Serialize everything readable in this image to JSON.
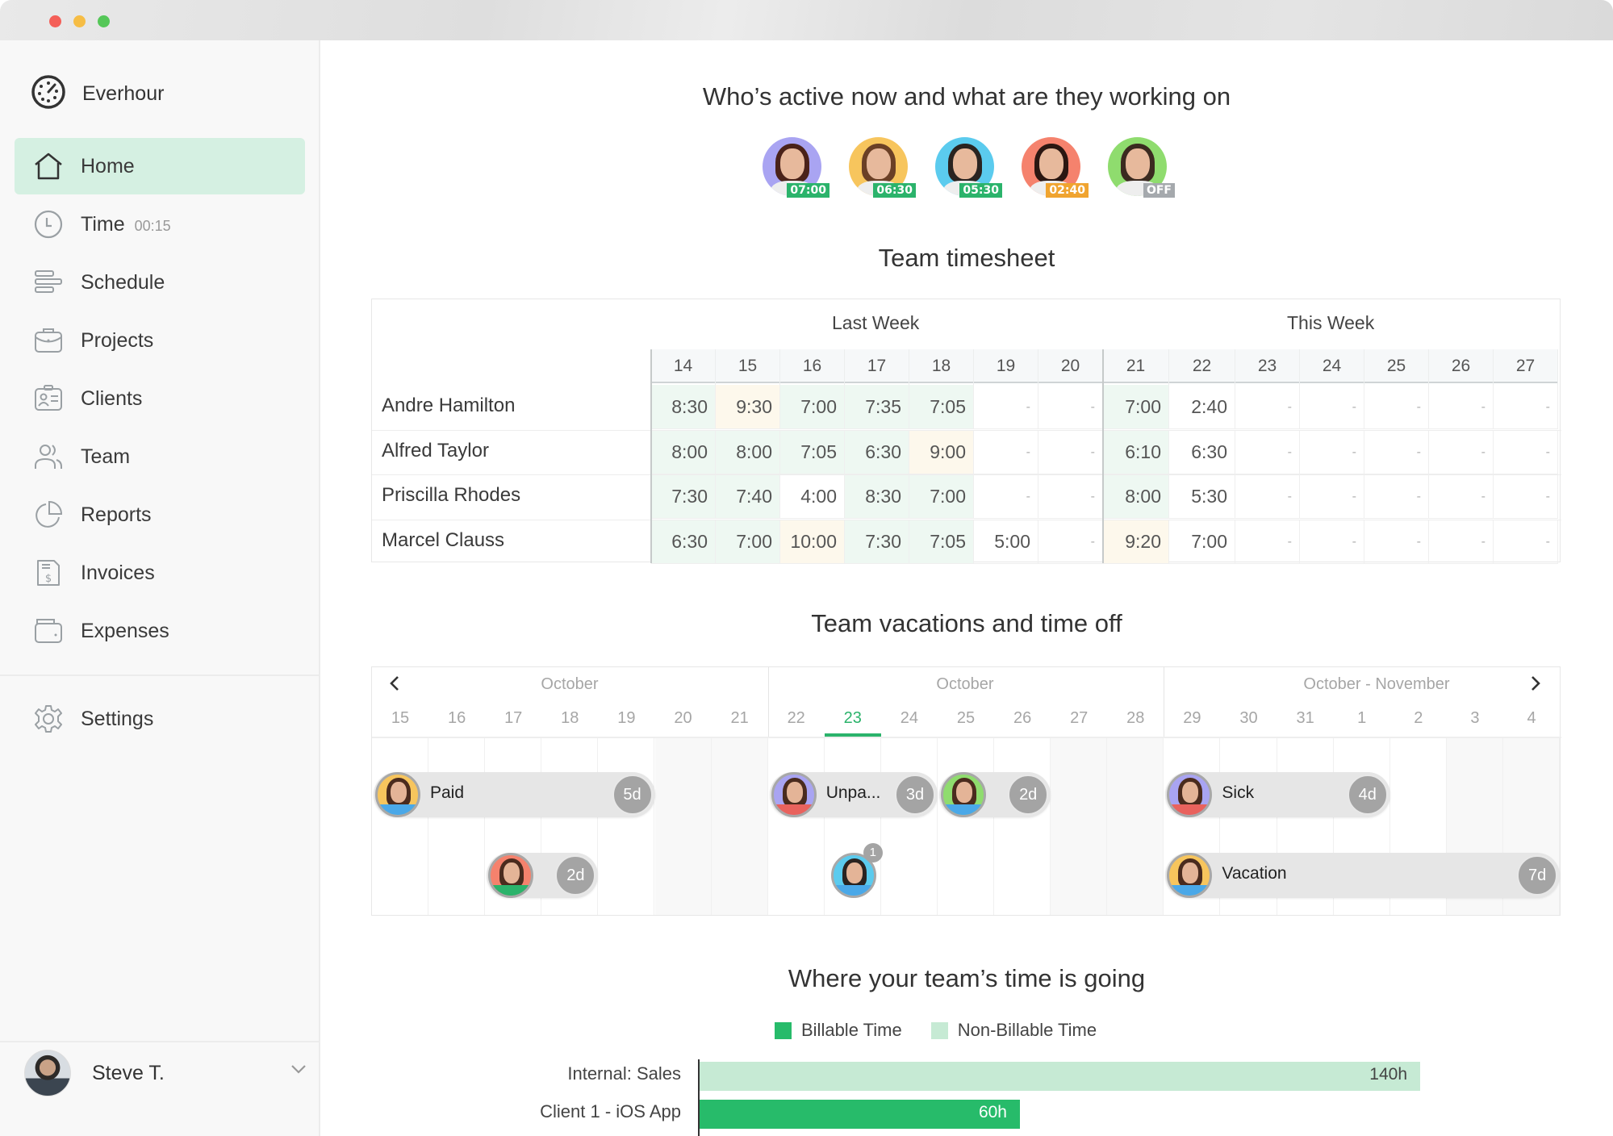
{
  "window": {
    "controls": [
      "close",
      "minimize",
      "maximize"
    ]
  },
  "sidebar": {
    "brand": "Everhour",
    "items": [
      {
        "label": "Home",
        "icon": "home-icon",
        "active": true
      },
      {
        "label": "Time",
        "icon": "clock-icon",
        "meta": "00:15"
      },
      {
        "label": "Schedule",
        "icon": "schedule-icon"
      },
      {
        "label": "Projects",
        "icon": "briefcase-icon"
      },
      {
        "label": "Clients",
        "icon": "id-card-icon"
      },
      {
        "label": "Team",
        "icon": "team-icon"
      },
      {
        "label": "Reports",
        "icon": "pie-chart-icon"
      },
      {
        "label": "Invoices",
        "icon": "invoice-icon"
      },
      {
        "label": "Expenses",
        "icon": "wallet-icon"
      }
    ],
    "settings": {
      "label": "Settings",
      "icon": "gear-icon"
    },
    "user": {
      "name": "Steve T."
    }
  },
  "active_now": {
    "title": "Who’s active now and what are they working on",
    "users": [
      {
        "badge": "07:00",
        "bg": "#a9a4f2",
        "badge_color": "#2bb36b",
        "hair": "#4a2219"
      },
      {
        "badge": "06:30",
        "bg": "#f7c55d",
        "badge_color": "#2bb36b",
        "hair": "#6b4026"
      },
      {
        "badge": "05:30",
        "bg": "#5bcbee",
        "badge_color": "#2bb36b",
        "hair": "#2a2320"
      },
      {
        "badge": "02:40",
        "bg": "#f5826d",
        "badge_color": "#f0a430",
        "hair": "#2b1712"
      },
      {
        "badge": "OFF",
        "bg": "#8fdc6e",
        "badge_color": "#a5a9ad",
        "hair": "#3b2a20"
      }
    ]
  },
  "timesheet": {
    "title": "Team timesheet",
    "weeks": [
      "Last Week",
      "This Week"
    ],
    "days": [
      "14",
      "15",
      "16",
      "17",
      "18",
      "19",
      "20",
      "21",
      "22",
      "23",
      "24",
      "25",
      "26",
      "27"
    ],
    "rows": [
      {
        "name": "Andre Hamilton",
        "values": [
          "8:30",
          "9:30",
          "7:00",
          "7:35",
          "7:05",
          "-",
          "-",
          "7:00",
          "2:40",
          "-",
          "-",
          "-",
          "-",
          "-"
        ],
        "tints": [
          "g",
          "y",
          "g",
          "g",
          "g",
          "",
          "",
          "g",
          "",
          "",
          "",
          "",
          "",
          ""
        ]
      },
      {
        "name": "Alfred Taylor",
        "values": [
          "8:00",
          "8:00",
          "7:05",
          "6:30",
          "9:00",
          "-",
          "-",
          "6:10",
          "6:30",
          "-",
          "-",
          "-",
          "-",
          "-"
        ],
        "tints": [
          "g",
          "g",
          "g",
          "g",
          "y",
          "",
          "",
          "g",
          "",
          "",
          "",
          "",
          "",
          ""
        ]
      },
      {
        "name": "Priscilla Rhodes",
        "values": [
          "7:30",
          "7:40",
          "4:00",
          "8:30",
          "7:00",
          "-",
          "-",
          "8:00",
          "5:30",
          "-",
          "-",
          "-",
          "-",
          "-"
        ],
        "tints": [
          "g",
          "g",
          "",
          "g",
          "g",
          "",
          "",
          "g",
          "",
          "",
          "",
          "",
          "",
          ""
        ]
      },
      {
        "name": "Marcel Clauss",
        "values": [
          "6:30",
          "7:00",
          "10:00",
          "7:30",
          "7:05",
          "5:00",
          "-",
          "9:20",
          "7:00",
          "-",
          "-",
          "-",
          "-",
          "-"
        ],
        "tints": [
          "g",
          "g",
          "y",
          "g",
          "g",
          "",
          "",
          "y",
          "",
          "",
          "",
          "",
          "",
          ""
        ]
      }
    ]
  },
  "vacations": {
    "title": "Team vacations and time off",
    "months": [
      "October",
      "October",
      "October - November"
    ],
    "days": [
      "15",
      "16",
      "17",
      "18",
      "19",
      "20",
      "21",
      "22",
      "23",
      "24",
      "25",
      "26",
      "27",
      "28",
      "29",
      "30",
      "31",
      "1",
      "2",
      "3",
      "4"
    ],
    "today_index": 8,
    "entries": [
      {
        "label": "Paid",
        "days": "5d",
        "start": 0,
        "span": 5,
        "row": 0,
        "bg": "#f7c55d",
        "strip": "#4aa8e8"
      },
      {
        "label": "Unpa...",
        "days": "3d",
        "start": 7,
        "span": 3,
        "row": 0,
        "bg": "#a9a4f2",
        "strip": "#e9625d"
      },
      {
        "label": "",
        "days": "2d",
        "start": 10,
        "span": 2,
        "row": 0,
        "bg": "#8fdc6e",
        "strip": "#4aa8e8"
      },
      {
        "label": "Sick",
        "days": "4d",
        "start": 14,
        "span": 4,
        "row": 0,
        "bg": "#a9a4f2",
        "strip": "#e9625d"
      },
      {
        "label": "",
        "days": "2d",
        "start": 2,
        "span": 2,
        "row": 1,
        "bg": "#f5826d",
        "strip": "#2bb36b"
      },
      {
        "label": "Vacation",
        "days": "7d",
        "start": 14,
        "span": 7,
        "row": 1,
        "bg": "#f7c55d",
        "strip": "#4aa8e8"
      }
    ],
    "single": {
      "start": 8,
      "row": 1,
      "bg": "#5bcbee",
      "strip": "#4aa8e8",
      "count": "1"
    }
  },
  "time_going": {
    "title": "Where your team’s time is going",
    "legend": [
      {
        "label": "Billable Time",
        "color": "#27bb6a"
      },
      {
        "label": "Non-Billable Time",
        "color": "#c6ead4"
      }
    ]
  },
  "chart_data": {
    "type": "bar",
    "orientation": "horizontal",
    "title": "Where your team’s time is going",
    "categories": [
      "Internal: Sales",
      "Client 1 - iOS App"
    ],
    "series": [
      {
        "name": "Billable Time",
        "color": "#27bb6a",
        "values": [
          0,
          60
        ]
      },
      {
        "name": "Non-Billable Time",
        "color": "#c6ead4",
        "values": [
          140,
          0
        ]
      }
    ],
    "value_labels": [
      "140h",
      "60h"
    ],
    "unit": "h",
    "legend_position": "top",
    "grid": false
  }
}
